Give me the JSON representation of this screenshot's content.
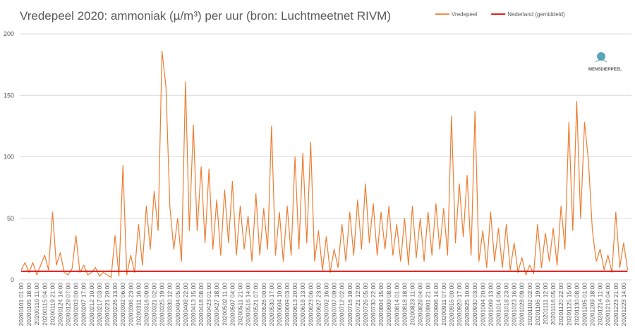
{
  "chart_data": {
    "type": "line",
    "title": "Vredepeel 2020: ammoniak (µ/m³) per uur (bron: Luchtmeetnet RIVM)",
    "logo": "MENSDIERPEEL",
    "categories": [
      "20200101 01:00",
      null,
      "20200105 18:00",
      null,
      "20200110 11:00",
      null,
      "20200115 04:00",
      null,
      "20200119 21:00",
      null,
      "20200124 14:00",
      null,
      "20200129 07:00",
      null,
      "20200203 00:00",
      null,
      "20200207 17:00",
      null,
      "20200212 10:00",
      null,
      "20200217 03:00",
      null,
      "20200221 20:00",
      null,
      "20200226 13:00",
      null,
      "20200302 06:00",
      null,
      "20200306 23:00",
      null,
      "20200311 16:00",
      null,
      "20200316 09:00",
      null,
      "20200321 02:00",
      null,
      "20200325 19:00",
      null,
      "20200330 12:00",
      null,
      "20200404 05:00",
      null,
      "20200408 22:00",
      null,
      "20200413 15:00",
      null,
      "20200418 08:00",
      null,
      "20200423 01:00",
      null,
      "20200427 18:00",
      null,
      "20200502 11:00",
      null,
      "20200507 04:00",
      null,
      "20200511 21:00",
      null,
      "20200516 14:00",
      null,
      "20200521 07:00",
      null,
      "20200526 00:00",
      null,
      "20200530 17:00",
      null,
      "20200604 10:00",
      null,
      "20200609 03:00",
      null,
      "20200613 20:00",
      null,
      "20200618 13:00",
      null,
      "20200623 06:00",
      null,
      "20200627 23:00",
      null,
      "20200702 16:00",
      null,
      "20200707 09:00",
      null,
      "20200712 02:00",
      null,
      "20200716 19:00",
      null,
      "20200721 12:00",
      null,
      "20200726 05:00",
      null,
      "20200730 22:00",
      null,
      "20200804 15:00",
      null,
      "20200809 08:00",
      null,
      "20200814 01:00",
      null,
      "20200818 18:00",
      null,
      "20200823 11:00",
      null,
      "20200828 04:00",
      null,
      "20200901 21:00",
      null,
      "20200906 14:00",
      null,
      "20200911 07:00",
      null,
      "20200916 00:00",
      null,
      "20200920 17:00",
      null,
      "20200925 10:00",
      null,
      "20200930 03:00",
      null,
      "20201004 20:00",
      null,
      "20201009 13:00",
      null,
      "20201014 06:00",
      null,
      "20201018 23:00",
      null,
      "20201023 16:00",
      null,
      "20201028 09:00",
      null,
      "20201102 02:00",
      null,
      "20201106 19:00",
      null,
      "20201111 12:00",
      null,
      "20201116 05:00",
      null,
      "20201120 22:00",
      null,
      "20201125 15:00",
      null,
      "20201130 08:00",
      null,
      "20201205 01:00",
      null,
      "20201209 18:00",
      null,
      "20201214 11:00",
      null,
      "20201219 04:00",
      null,
      "20201223 21:00",
      null,
      "20201228 14:00",
      null
    ],
    "series": [
      {
        "name": "Vredepeel",
        "color": "#ed7d31",
        "values": [
          8,
          14,
          6,
          14,
          4,
          12,
          20,
          8,
          55,
          12,
          22,
          6,
          4,
          9,
          36,
          6,
          12,
          4,
          6,
          10,
          3,
          6,
          4,
          2,
          36,
          3,
          93,
          4,
          20,
          6,
          45,
          12,
          60,
          25,
          72,
          40,
          186,
          157,
          60,
          25,
          50,
          15,
          161,
          40,
          126,
          40,
          92,
          30,
          90,
          25,
          65,
          20,
          73,
          30,
          80,
          20,
          60,
          25,
          52,
          15,
          70,
          20,
          58,
          25,
          125,
          20,
          55,
          15,
          60,
          20,
          100,
          25,
          103,
          30,
          112,
          15,
          40,
          8,
          35,
          6,
          25,
          10,
          45,
          15,
          55,
          20,
          65,
          25,
          78,
          30,
          62,
          20,
          55,
          25,
          60,
          20,
          45,
          15,
          50,
          12,
          60,
          18,
          50,
          15,
          55,
          20,
          62,
          25,
          58,
          20,
          133,
          30,
          78,
          35,
          85,
          20,
          137,
          15,
          40,
          10,
          55,
          15,
          42,
          10,
          45,
          8,
          30,
          6,
          18,
          4,
          12,
          5,
          45,
          10,
          38,
          15,
          42,
          12,
          60,
          25,
          128,
          40,
          145,
          50,
          128,
          97,
          40,
          15,
          25,
          8,
          20,
          6,
          55,
          10,
          30,
          8
        ]
      },
      {
        "name": "Nederland (gemiddeld)",
        "color": "#e00000",
        "values": [
          7,
          7,
          7,
          7,
          7,
          7,
          7,
          7,
          7,
          7,
          7,
          7,
          7,
          7,
          7,
          7,
          7,
          7,
          7,
          7,
          7,
          7,
          7,
          7,
          7,
          7,
          7,
          7,
          7,
          7,
          7,
          7,
          7,
          7,
          7,
          7,
          7,
          7,
          7,
          7,
          7,
          7,
          7,
          7,
          7,
          7,
          7,
          7,
          7,
          7,
          7,
          7,
          7,
          7,
          7,
          7,
          7,
          7,
          7,
          7,
          7,
          7,
          7,
          7,
          7,
          7,
          7,
          7,
          7,
          7,
          7,
          7,
          7,
          7,
          7,
          7,
          7,
          7,
          7,
          7,
          7,
          7,
          7,
          7,
          7,
          7,
          7,
          7,
          7,
          7,
          7,
          7,
          7,
          7,
          7,
          7,
          7,
          7,
          7,
          7,
          7,
          7,
          7,
          7,
          7,
          7,
          7,
          7,
          7,
          7,
          7,
          7,
          7,
          7,
          7,
          7,
          7,
          7,
          7,
          7,
          7,
          7,
          7,
          7,
          7,
          7,
          7,
          7,
          7,
          7,
          7,
          7,
          7,
          7,
          7,
          7,
          7,
          7,
          7,
          7,
          7,
          7,
          7,
          7,
          7,
          7,
          7,
          7,
          7,
          7,
          7,
          7,
          7,
          7,
          7,
          7
        ]
      }
    ],
    "ylim": [
      0,
      200
    ],
    "yticks": [
      0,
      50,
      100,
      150,
      200
    ],
    "grid": true,
    "legend": "top-right"
  }
}
